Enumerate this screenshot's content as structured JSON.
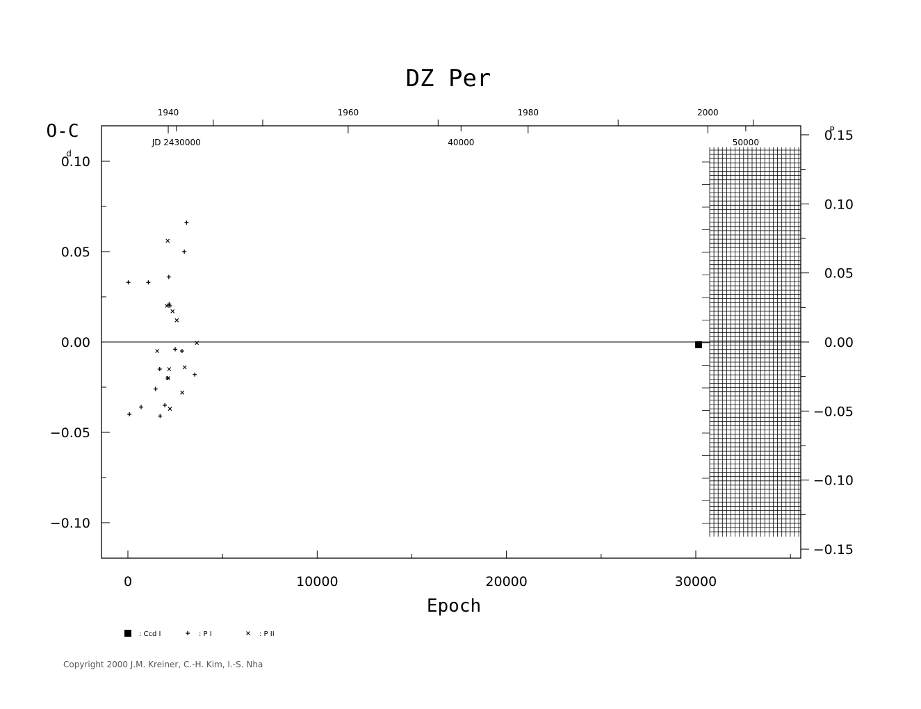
{
  "chart_data": {
    "type": "scatter",
    "title": "DZ Per",
    "xlabel": "Epoch",
    "ylabel": "O-C",
    "ylabel_unit": "d",
    "right_unit": "P",
    "xlim": [
      -1400,
      35600
    ],
    "ylim": [
      -0.12,
      0.12
    ],
    "right_ylim": [
      -0.157,
      0.157
    ],
    "x_ticks": [
      0,
      10000,
      20000,
      30000
    ],
    "x_tick_labels": [
      "0",
      "10000",
      "20000",
      "30000"
    ],
    "y_ticks": [
      0.1,
      0.05,
      0.0,
      -0.05,
      -0.1
    ],
    "y_tick_labels": [
      "0.10",
      "0.05",
      "0.00",
      "−0.05",
      "−0.10"
    ],
    "right_ticks": [
      0.15,
      0.1,
      0.05,
      0.0,
      -0.05,
      -0.1,
      -0.15
    ],
    "right_tick_labels": [
      "0.15",
      "0.10",
      "0.05",
      "0.00",
      "−0.05",
      "−0.10",
      "−0.15"
    ],
    "top_year_ticks": [
      1940,
      1960,
      1980,
      2000
    ],
    "top_year_epochs": [
      2131,
      11636,
      21142,
      30639
    ],
    "top_year_labels": [
      "1940",
      "1960",
      "1980",
      "2000"
    ],
    "top_minor_year_epochs": [
      -1440,
      4510,
      7123,
      16388,
      25897,
      33033
    ],
    "top_jd_epochs": [
      2560,
      17600,
      32640
    ],
    "top_jd_labels": [
      "JD 2430000",
      "40000",
      "50000"
    ],
    "series": [
      {
        "name": "Ccd I",
        "marker": "square",
        "x": [
          30150
        ],
        "y": [
          -0.0015
        ]
      },
      {
        "name": "P I",
        "marker": "plus",
        "x": [
          20,
          1080,
          80,
          700,
          1460,
          1700,
          1950,
          2100,
          2160,
          1680,
          2180,
          2220,
          2500,
          2860,
          2980,
          3100,
          3530
        ],
        "y": [
          0.033,
          0.033,
          -0.04,
          -0.036,
          -0.026,
          -0.041,
          -0.035,
          -0.02,
          0.036,
          -0.015,
          0.021,
          0.02,
          -0.004,
          -0.005,
          0.05,
          0.066,
          -0.018
        ]
      },
      {
        "name": "P II",
        "marker": "cross",
        "x": [
          1550,
          2060,
          2100,
          2180,
          2220,
          2360,
          2580,
          2870,
          3000,
          3640,
          2120
        ],
        "y": [
          -0.005,
          0.02,
          0.056,
          -0.015,
          -0.037,
          0.017,
          0.012,
          -0.028,
          -0.014,
          -0.0005,
          -0.02
        ]
      }
    ],
    "grid": false,
    "legend_position": "bottom-left"
  },
  "legend": [
    {
      "marker": "square",
      "label": ": Ccd  I"
    },
    {
      "marker": "plus",
      "label": ": P  I"
    },
    {
      "marker": "cross",
      "label": ": P  II"
    }
  ],
  "copyright": "Copyright 2000 J.M. Kreiner, C.-H. Kim, I.-S. Nha"
}
